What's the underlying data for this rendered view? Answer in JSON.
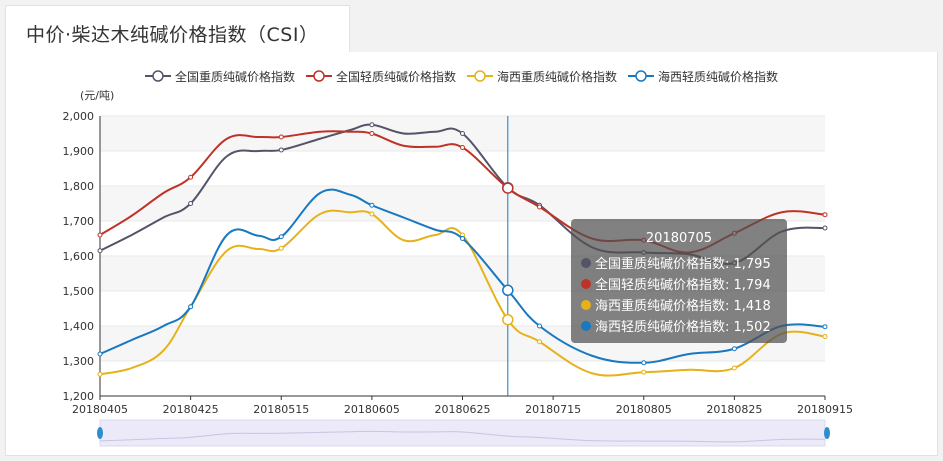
{
  "tab": {
    "title": "中价·柴达木纯碱价格指数（CSI）"
  },
  "chart_data": {
    "type": "line",
    "ylabel": "(元/吨)",
    "ylim": [
      1200,
      2000
    ],
    "yticks": [
      "2,000",
      "1,900",
      "1,800",
      "1,700",
      "1,600",
      "1,500",
      "1,400",
      "1,300",
      "1,200"
    ],
    "xtick_labels": [
      "20180405",
      "20180425",
      "20180515",
      "20180605",
      "20180625",
      "20180715",
      "20180805",
      "20180825",
      "20180915"
    ],
    "x": [
      "20180405",
      "20180412",
      "20180419",
      "20180425",
      "20180503",
      "20180510",
      "20180515",
      "20180524",
      "20180531",
      "20180605",
      "20180612",
      "20180619",
      "20180625",
      "20180705",
      "20180712",
      "20180724",
      "20180805",
      "20180815",
      "20180825",
      "20180905",
      "20180915"
    ],
    "grid": true,
    "legend_position": "top",
    "series": [
      {
        "name": "全国重质纯碱价格指数",
        "color": "#535468",
        "values": [
          1615,
          1660,
          1710,
          1750,
          1885,
          1900,
          1903,
          1935,
          1960,
          1975,
          1950,
          1955,
          1950,
          1795,
          1745,
          1625,
          1610,
          1605,
          1580,
          1670,
          1680
        ]
      },
      {
        "name": "全国轻质纯碱价格指数",
        "color": "#bf3228",
        "values": [
          1660,
          1715,
          1780,
          1825,
          1935,
          1940,
          1940,
          1955,
          1955,
          1950,
          1915,
          1912,
          1910,
          1794,
          1740,
          1650,
          1645,
          1610,
          1665,
          1725,
          1718
        ]
      },
      {
        "name": "海西重质纯碱价格指数",
        "color": "#e5b21a",
        "values": [
          1262,
          1280,
          1330,
          1455,
          1615,
          1620,
          1622,
          1720,
          1725,
          1720,
          1645,
          1660,
          1660,
          1418,
          1355,
          1265,
          1268,
          1275,
          1280,
          1378,
          1370
        ]
      },
      {
        "name": "海西轻质纯碱价格指数",
        "color": "#1878c0",
        "values": [
          1320,
          1360,
          1400,
          1455,
          1660,
          1658,
          1655,
          1780,
          1775,
          1745,
          1710,
          1675,
          1650,
          1502,
          1400,
          1315,
          1295,
          1320,
          1335,
          1400,
          1398
        ]
      }
    ],
    "highlight": {
      "date": "20180705",
      "lines": [
        {
          "label": "全国重质纯碱价格指数: 1,795",
          "color": "#535468"
        },
        {
          "label": "全国轻质纯碱价格指数: 1,794",
          "color": "#bf3228"
        },
        {
          "label": "海西重质纯碱价格指数: 1,418",
          "color": "#e5b21a"
        },
        {
          "label": "海西轻质纯碱价格指数: 1,502",
          "color": "#1878c0"
        }
      ]
    }
  }
}
